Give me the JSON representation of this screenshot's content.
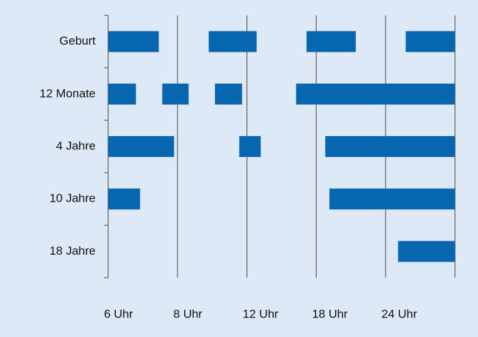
{
  "chart_data": {
    "type": "range-bar",
    "categories": [
      "Geburt",
      "12 Monate",
      "4 Jahre",
      "10 Jahre",
      "18 Jahre"
    ],
    "ranges": [
      [
        [
          0,
          0.73
        ],
        [
          1.45,
          2.14
        ],
        [
          2.86,
          3.57
        ],
        [
          4.29,
          5
        ]
      ],
      [
        [
          0,
          0.4
        ],
        [
          0.78,
          1.16
        ],
        [
          1.54,
          1.93
        ],
        [
          2.71,
          5
        ]
      ],
      [
        [
          0,
          0.95
        ],
        [
          1.89,
          2.2
        ],
        [
          3.13,
          5
        ]
      ],
      [
        [
          0,
          0.46
        ],
        [
          3.19,
          5
        ]
      ],
      [
        [
          4.18,
          5
        ]
      ]
    ],
    "color": "#0766b0",
    "xlim": [
      0,
      5
    ],
    "xticks": [
      {
        "value": 0,
        "label": "6 Uhr"
      },
      {
        "value": 1,
        "label": "8 Uhr"
      },
      {
        "value": 2,
        "label": "12 Uhr"
      },
      {
        "value": 3,
        "label": "18 Uhr"
      },
      {
        "value": 4,
        "label": "24 Uhr"
      }
    ],
    "grid": true
  }
}
